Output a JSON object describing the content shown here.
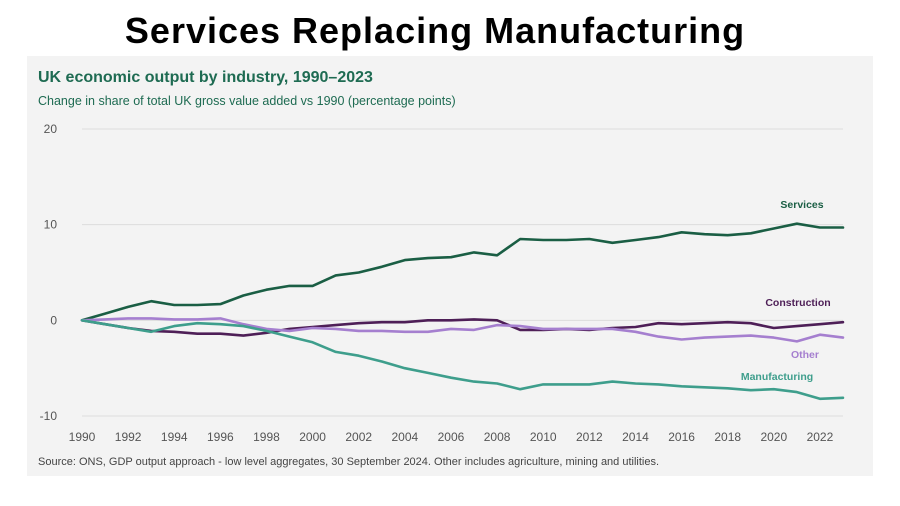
{
  "headline": "Services Replacing Manufacturing",
  "chart_data": {
    "type": "line",
    "title": "UK economic output by industry, 1990–2023",
    "subtitle": "Change in share of total UK gross value added vs 1990 (percentage points)",
    "source": "Source:  ONS, GDP output approach - low level aggregates, 30 September 2024. Other includes agriculture, mining and utilities.",
    "xlabel": "",
    "ylabel": "",
    "xlim": [
      1990,
      2023
    ],
    "ylim": [
      -10,
      20
    ],
    "x": [
      1990,
      1991,
      1992,
      1993,
      1994,
      1995,
      1996,
      1997,
      1998,
      1999,
      2000,
      2001,
      2002,
      2003,
      2004,
      2005,
      2006,
      2007,
      2008,
      2009,
      2010,
      2011,
      2012,
      2013,
      2014,
      2015,
      2016,
      2017,
      2018,
      2019,
      2020,
      2021,
      2022,
      2023
    ],
    "x_ticks": [
      "1990",
      "1992",
      "1994",
      "1996",
      "1998",
      "2000",
      "2002",
      "2004",
      "2006",
      "2008",
      "2010",
      "2012",
      "2014",
      "2016",
      "2018",
      "2020",
      "2022"
    ],
    "y_ticks": [
      "20",
      "10",
      "0",
      "-10"
    ],
    "y_tick_values": [
      20,
      10,
      0,
      -10
    ],
    "grid": true,
    "series": [
      {
        "name": "Services",
        "color": "#1a5e44",
        "values": [
          0,
          0.7,
          1.4,
          2.0,
          1.6,
          1.6,
          1.7,
          2.6,
          3.2,
          3.6,
          3.6,
          4.7,
          5.0,
          5.6,
          6.3,
          6.5,
          6.6,
          7.1,
          6.8,
          8.5,
          8.4,
          8.4,
          8.5,
          8.1,
          8.4,
          8.7,
          9.2,
          9.0,
          8.9,
          9.1,
          9.6,
          10.1,
          9.7,
          9.7
        ]
      },
      {
        "name": "Construction",
        "color": "#4e1f57",
        "values": [
          0,
          -0.4,
          -0.8,
          -1.1,
          -1.2,
          -1.4,
          -1.4,
          -1.6,
          -1.3,
          -0.9,
          -0.7,
          -0.5,
          -0.3,
          -0.2,
          -0.2,
          0.0,
          0.0,
          0.1,
          0.0,
          -1.0,
          -1.0,
          -0.9,
          -1.0,
          -0.8,
          -0.7,
          -0.3,
          -0.4,
          -0.3,
          -0.2,
          -0.3,
          -0.8,
          -0.6,
          -0.4,
          -0.2
        ]
      },
      {
        "name": "Other",
        "color": "#a57fcf",
        "values": [
          0,
          0.1,
          0.2,
          0.2,
          0.1,
          0.1,
          0.2,
          -0.4,
          -0.9,
          -1.1,
          -0.8,
          -0.9,
          -1.1,
          -1.1,
          -1.2,
          -1.2,
          -0.9,
          -1.0,
          -0.5,
          -0.6,
          -0.9,
          -0.9,
          -0.9,
          -0.9,
          -1.2,
          -1.7,
          -2.0,
          -1.8,
          -1.7,
          -1.6,
          -1.8,
          -2.2,
          -1.5,
          -1.8
        ]
      },
      {
        "name": "Manufacturing",
        "color": "#3e9e8c",
        "values": [
          0,
          -0.4,
          -0.8,
          -1.2,
          -0.6,
          -0.3,
          -0.4,
          -0.6,
          -1.1,
          -1.7,
          -2.3,
          -3.3,
          -3.7,
          -4.3,
          -5.0,
          -5.5,
          -6.0,
          -6.4,
          -6.6,
          -7.2,
          -6.7,
          -6.7,
          -6.7,
          -6.4,
          -6.6,
          -6.7,
          -6.9,
          -7.0,
          -7.1,
          -7.3,
          -7.2,
          -7.5,
          -8.2,
          -8.1
        ]
      }
    ]
  }
}
